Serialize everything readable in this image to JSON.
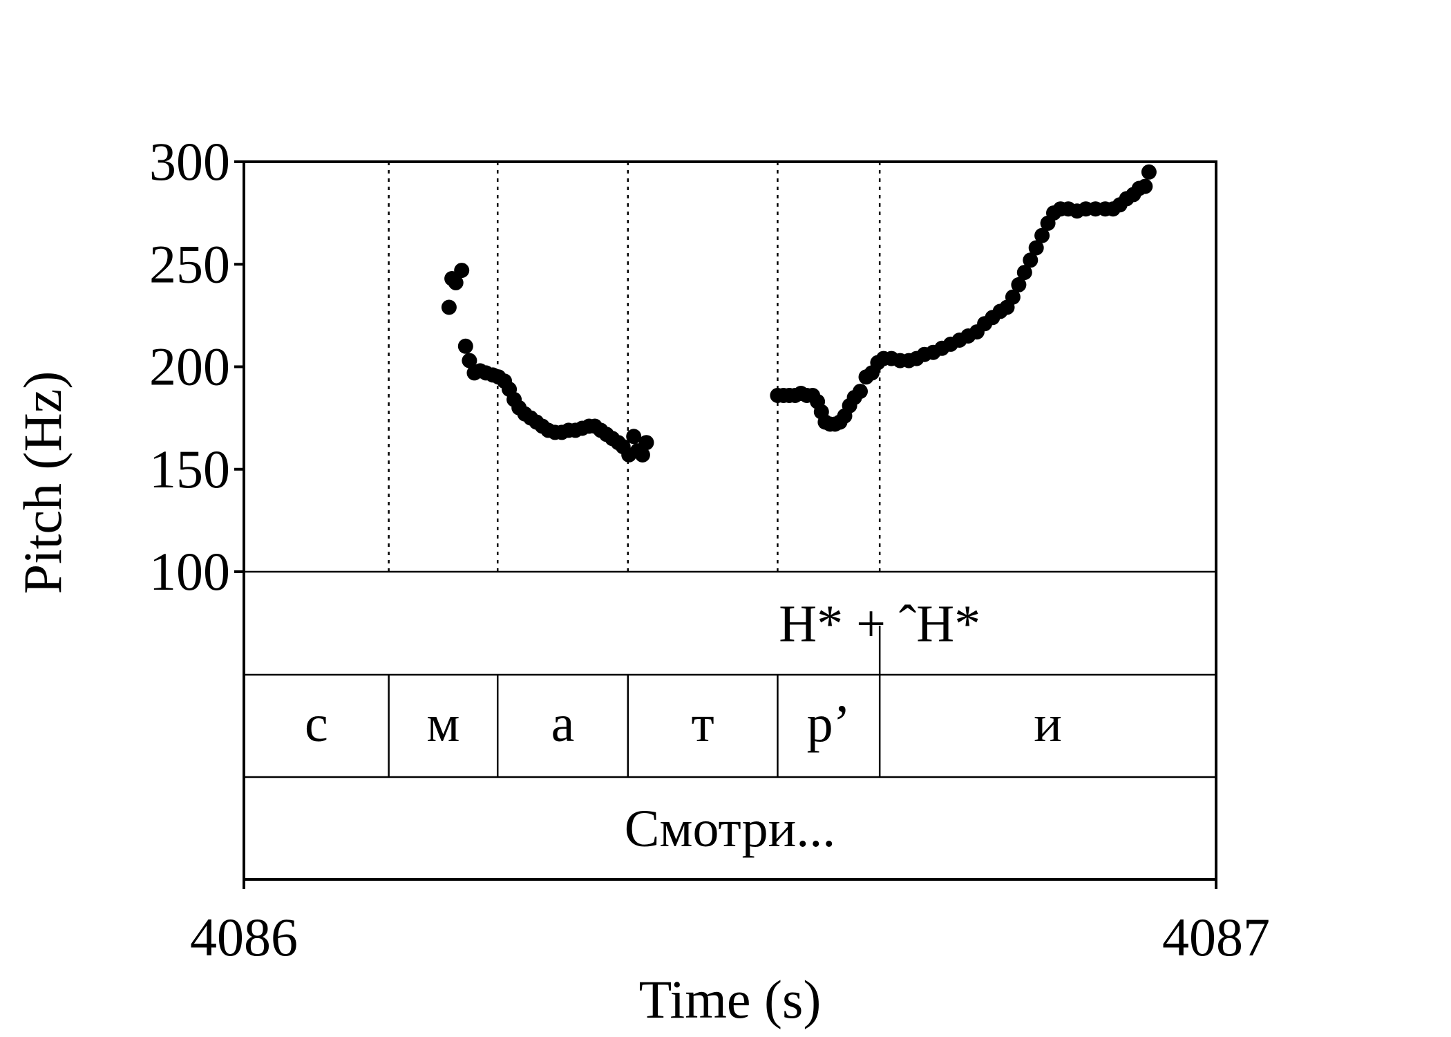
{
  "chart_data": {
    "type": "scatter",
    "xlabel": "Time (s)",
    "ylabel": "Pitch (Hz)",
    "xlim": [
      4086,
      4087
    ],
    "ylim": [
      100,
      300
    ],
    "xticks": [
      "4086",
      "4087"
    ],
    "yticks": [
      "100",
      "150",
      "200",
      "250",
      "300"
    ],
    "grid": false,
    "boundaries": [
      4086.149,
      4086.261,
      4086.395,
      4086.549,
      4086.654
    ],
    "tiers": {
      "tone": {
        "label": "H* + ˆH*",
        "x_center": 4086.654
      },
      "phones": [
        {
          "label": "с",
          "x_start": 4086.0,
          "x_end": 4086.149
        },
        {
          "label": "м",
          "x_start": 4086.149,
          "x_end": 4086.261
        },
        {
          "label": "а",
          "x_start": 4086.261,
          "x_end": 4086.395
        },
        {
          "label": "т",
          "x_start": 4086.395,
          "x_end": 4086.549
        },
        {
          "label": "р’",
          "x_start": 4086.549,
          "x_end": 4086.654
        },
        {
          "label": "и",
          "x_start": 4086.654,
          "x_end": 4087.0
        }
      ],
      "word": {
        "label": "Смотри..."
      }
    },
    "series": [
      {
        "points": [
          [
            4086.211,
            229
          ],
          [
            4086.214,
            243
          ],
          [
            4086.218,
            241
          ],
          [
            4086.224,
            247
          ],
          [
            4086.228,
            210
          ],
          [
            4086.232,
            203
          ],
          [
            4086.237,
            197
          ],
          [
            4086.243,
            198
          ],
          [
            4086.249,
            197
          ],
          [
            4086.256,
            196
          ],
          [
            4086.262,
            195
          ],
          [
            4086.268,
            193
          ],
          [
            4086.273,
            189
          ],
          [
            4086.278,
            184
          ],
          [
            4086.283,
            180
          ],
          [
            4086.289,
            177
          ],
          [
            4086.295,
            175
          ],
          [
            4086.301,
            173
          ],
          [
            4086.307,
            171
          ],
          [
            4086.313,
            169
          ],
          [
            4086.32,
            168
          ],
          [
            4086.327,
            168
          ],
          [
            4086.334,
            169
          ],
          [
            4086.341,
            169
          ],
          [
            4086.348,
            170
          ],
          [
            4086.355,
            171
          ],
          [
            4086.361,
            171
          ],
          [
            4086.367,
            169
          ],
          [
            4086.373,
            167
          ],
          [
            4086.379,
            165
          ],
          [
            4086.385,
            163
          ],
          [
            4086.39,
            161
          ],
          [
            4086.396,
            157
          ],
          [
            4086.401,
            166
          ],
          [
            4086.405,
            159
          ],
          [
            4086.41,
            157
          ],
          [
            4086.414,
            163
          ],
          [
            4086.549,
            186
          ],
          [
            4086.555,
            186
          ],
          [
            4086.561,
            186
          ],
          [
            4086.567,
            186
          ],
          [
            4086.573,
            187
          ],
          [
            4086.579,
            186
          ],
          [
            4086.585,
            186
          ],
          [
            4086.59,
            183
          ],
          [
            4086.594,
            178
          ],
          [
            4086.598,
            173
          ],
          [
            4086.603,
            172
          ],
          [
            4086.608,
            172
          ],
          [
            4086.613,
            173
          ],
          [
            4086.618,
            176
          ],
          [
            4086.623,
            181
          ],
          [
            4086.628,
            185
          ],
          [
            4086.634,
            188
          ],
          [
            4086.64,
            195
          ],
          [
            4086.646,
            197
          ],
          [
            4086.652,
            202
          ],
          [
            4086.658,
            204
          ],
          [
            4086.666,
            204
          ],
          [
            4086.675,
            203
          ],
          [
            4086.684,
            203
          ],
          [
            4086.692,
            204
          ],
          [
            4086.7,
            206
          ],
          [
            4086.709,
            207
          ],
          [
            4086.718,
            209
          ],
          [
            4086.727,
            211
          ],
          [
            4086.736,
            213
          ],
          [
            4086.745,
            215
          ],
          [
            4086.754,
            217
          ],
          [
            4086.762,
            221
          ],
          [
            4086.77,
            224
          ],
          [
            4086.778,
            227
          ],
          [
            4086.785,
            229
          ],
          [
            4086.791,
            234
          ],
          [
            4086.797,
            240
          ],
          [
            4086.803,
            246
          ],
          [
            4086.809,
            252
          ],
          [
            4086.815,
            258
          ],
          [
            4086.821,
            264
          ],
          [
            4086.827,
            270
          ],
          [
            4086.833,
            275
          ],
          [
            4086.84,
            277
          ],
          [
            4086.848,
            277
          ],
          [
            4086.857,
            276
          ],
          [
            4086.866,
            277
          ],
          [
            4086.876,
            277
          ],
          [
            4086.886,
            277
          ],
          [
            4086.894,
            277
          ],
          [
            4086.901,
            279
          ],
          [
            4086.908,
            282
          ],
          [
            4086.915,
            284
          ],
          [
            4086.921,
            287
          ],
          [
            4086.927,
            288
          ],
          [
            4086.931,
            295
          ]
        ]
      }
    ]
  }
}
